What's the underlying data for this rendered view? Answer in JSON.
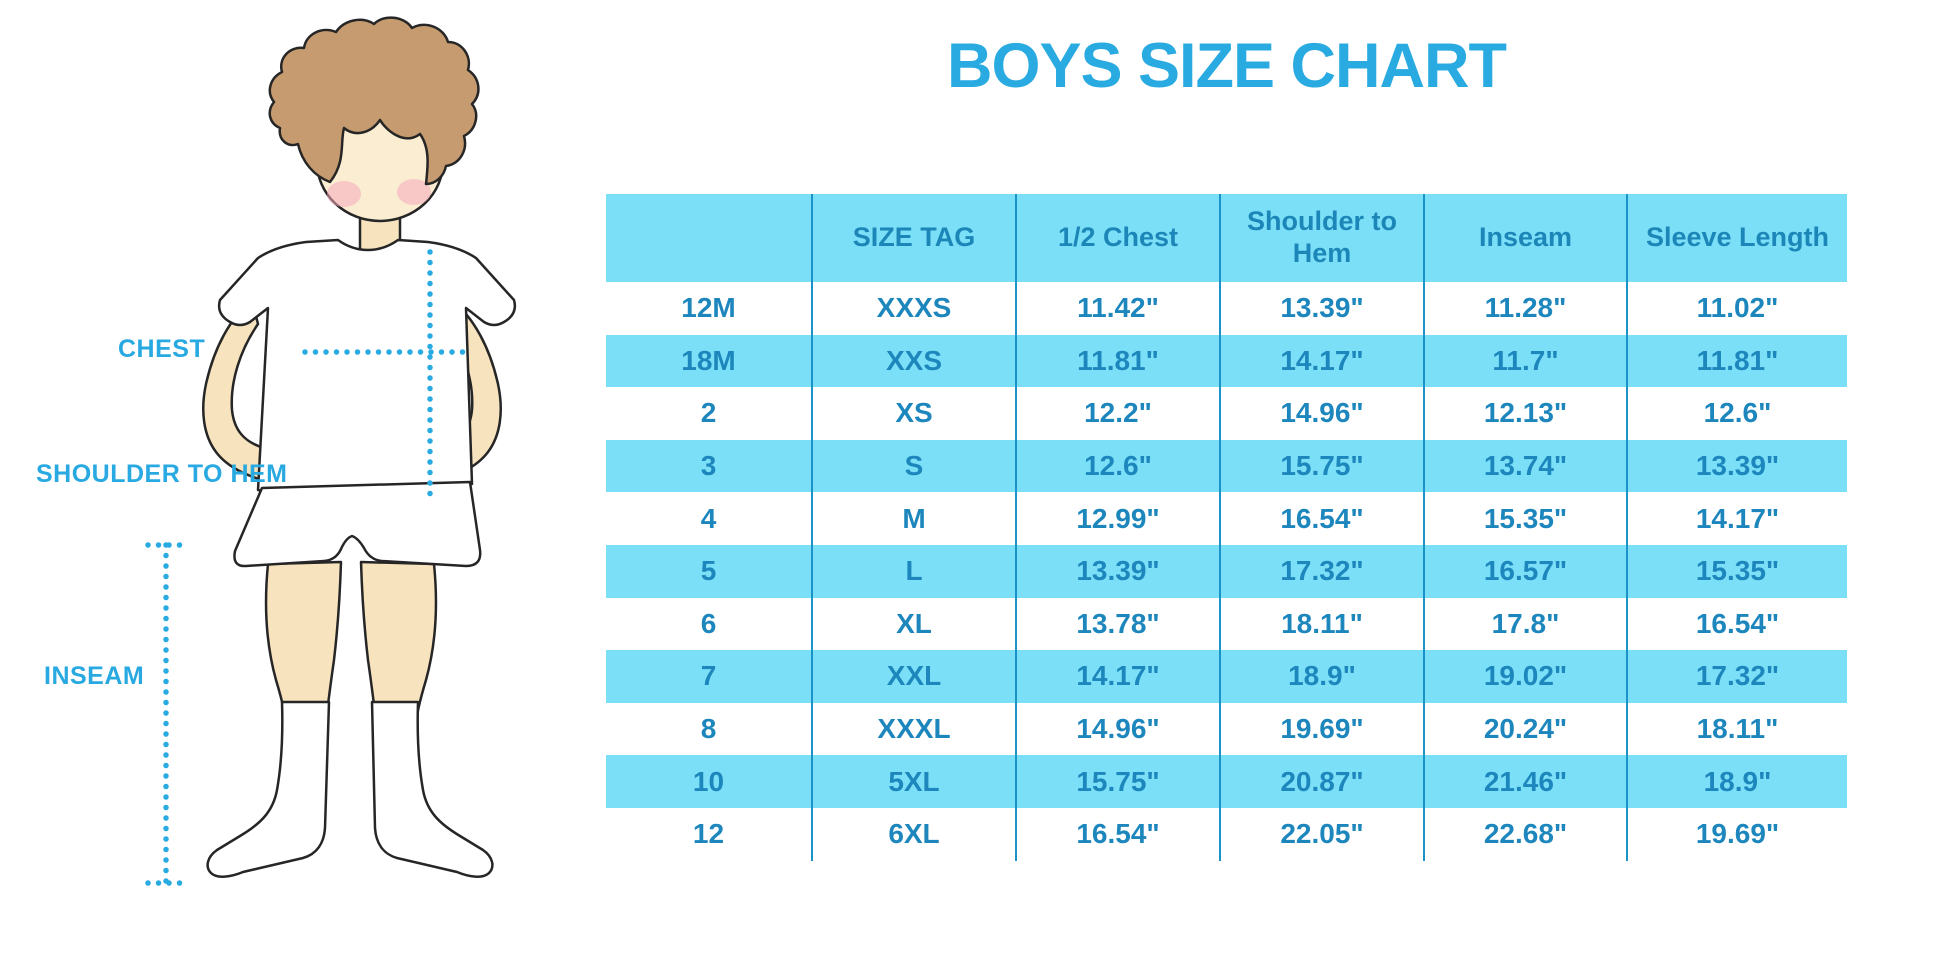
{
  "title": "BOYS SIZE CHART",
  "measurement_labels": {
    "chest": "CHEST",
    "shoulder_to_hem": "SHOULDER TO HEM",
    "inseam": "INSEAM"
  },
  "colors": {
    "accent": "#29ABE2",
    "table_stripe": "#7BE0F7",
    "table_text": "#1D87BD",
    "table_border": "#1A93C8",
    "hair": "#C59B6F",
    "skin": "#F7E3BE"
  },
  "chart_data": {
    "type": "table",
    "title": "BOYS SIZE CHART",
    "columns": [
      "",
      "SIZE TAG",
      "1/2 Chest",
      "Shoulder to Hem",
      "Inseam",
      "Sleeve Length"
    ],
    "rows": [
      [
        "12M",
        "XXXS",
        "11.42\"",
        "13.39\"",
        "11.28\"",
        "11.02\""
      ],
      [
        "18M",
        "XXS",
        "11.81\"",
        "14.17\"",
        "11.7\"",
        "11.81\""
      ],
      [
        "2",
        "XS",
        "12.2\"",
        "14.96\"",
        "12.13\"",
        "12.6\""
      ],
      [
        "3",
        "S",
        "12.6\"",
        "15.75\"",
        "13.74\"",
        "13.39\""
      ],
      [
        "4",
        "M",
        "12.99\"",
        "16.54\"",
        "15.35\"",
        "14.17\""
      ],
      [
        "5",
        "L",
        "13.39\"",
        "17.32\"",
        "16.57\"",
        "15.35\""
      ],
      [
        "6",
        "XL",
        "13.78\"",
        "18.11\"",
        "17.8\"",
        "16.54\""
      ],
      [
        "7",
        "XXL",
        "14.17\"",
        "18.9\"",
        "19.02\"",
        "17.32\""
      ],
      [
        "8",
        "XXXL",
        "14.96\"",
        "19.69\"",
        "20.24\"",
        "18.11\""
      ],
      [
        "10",
        "5XL",
        "15.75\"",
        "20.87\"",
        "21.46\"",
        "18.9\""
      ],
      [
        "12",
        "6XL",
        "16.54\"",
        "22.05\"",
        "22.68\"",
        "19.69\""
      ]
    ],
    "row_stripe_pattern": [
      "white",
      "blue"
    ],
    "grid": "vertical-lines-only"
  }
}
